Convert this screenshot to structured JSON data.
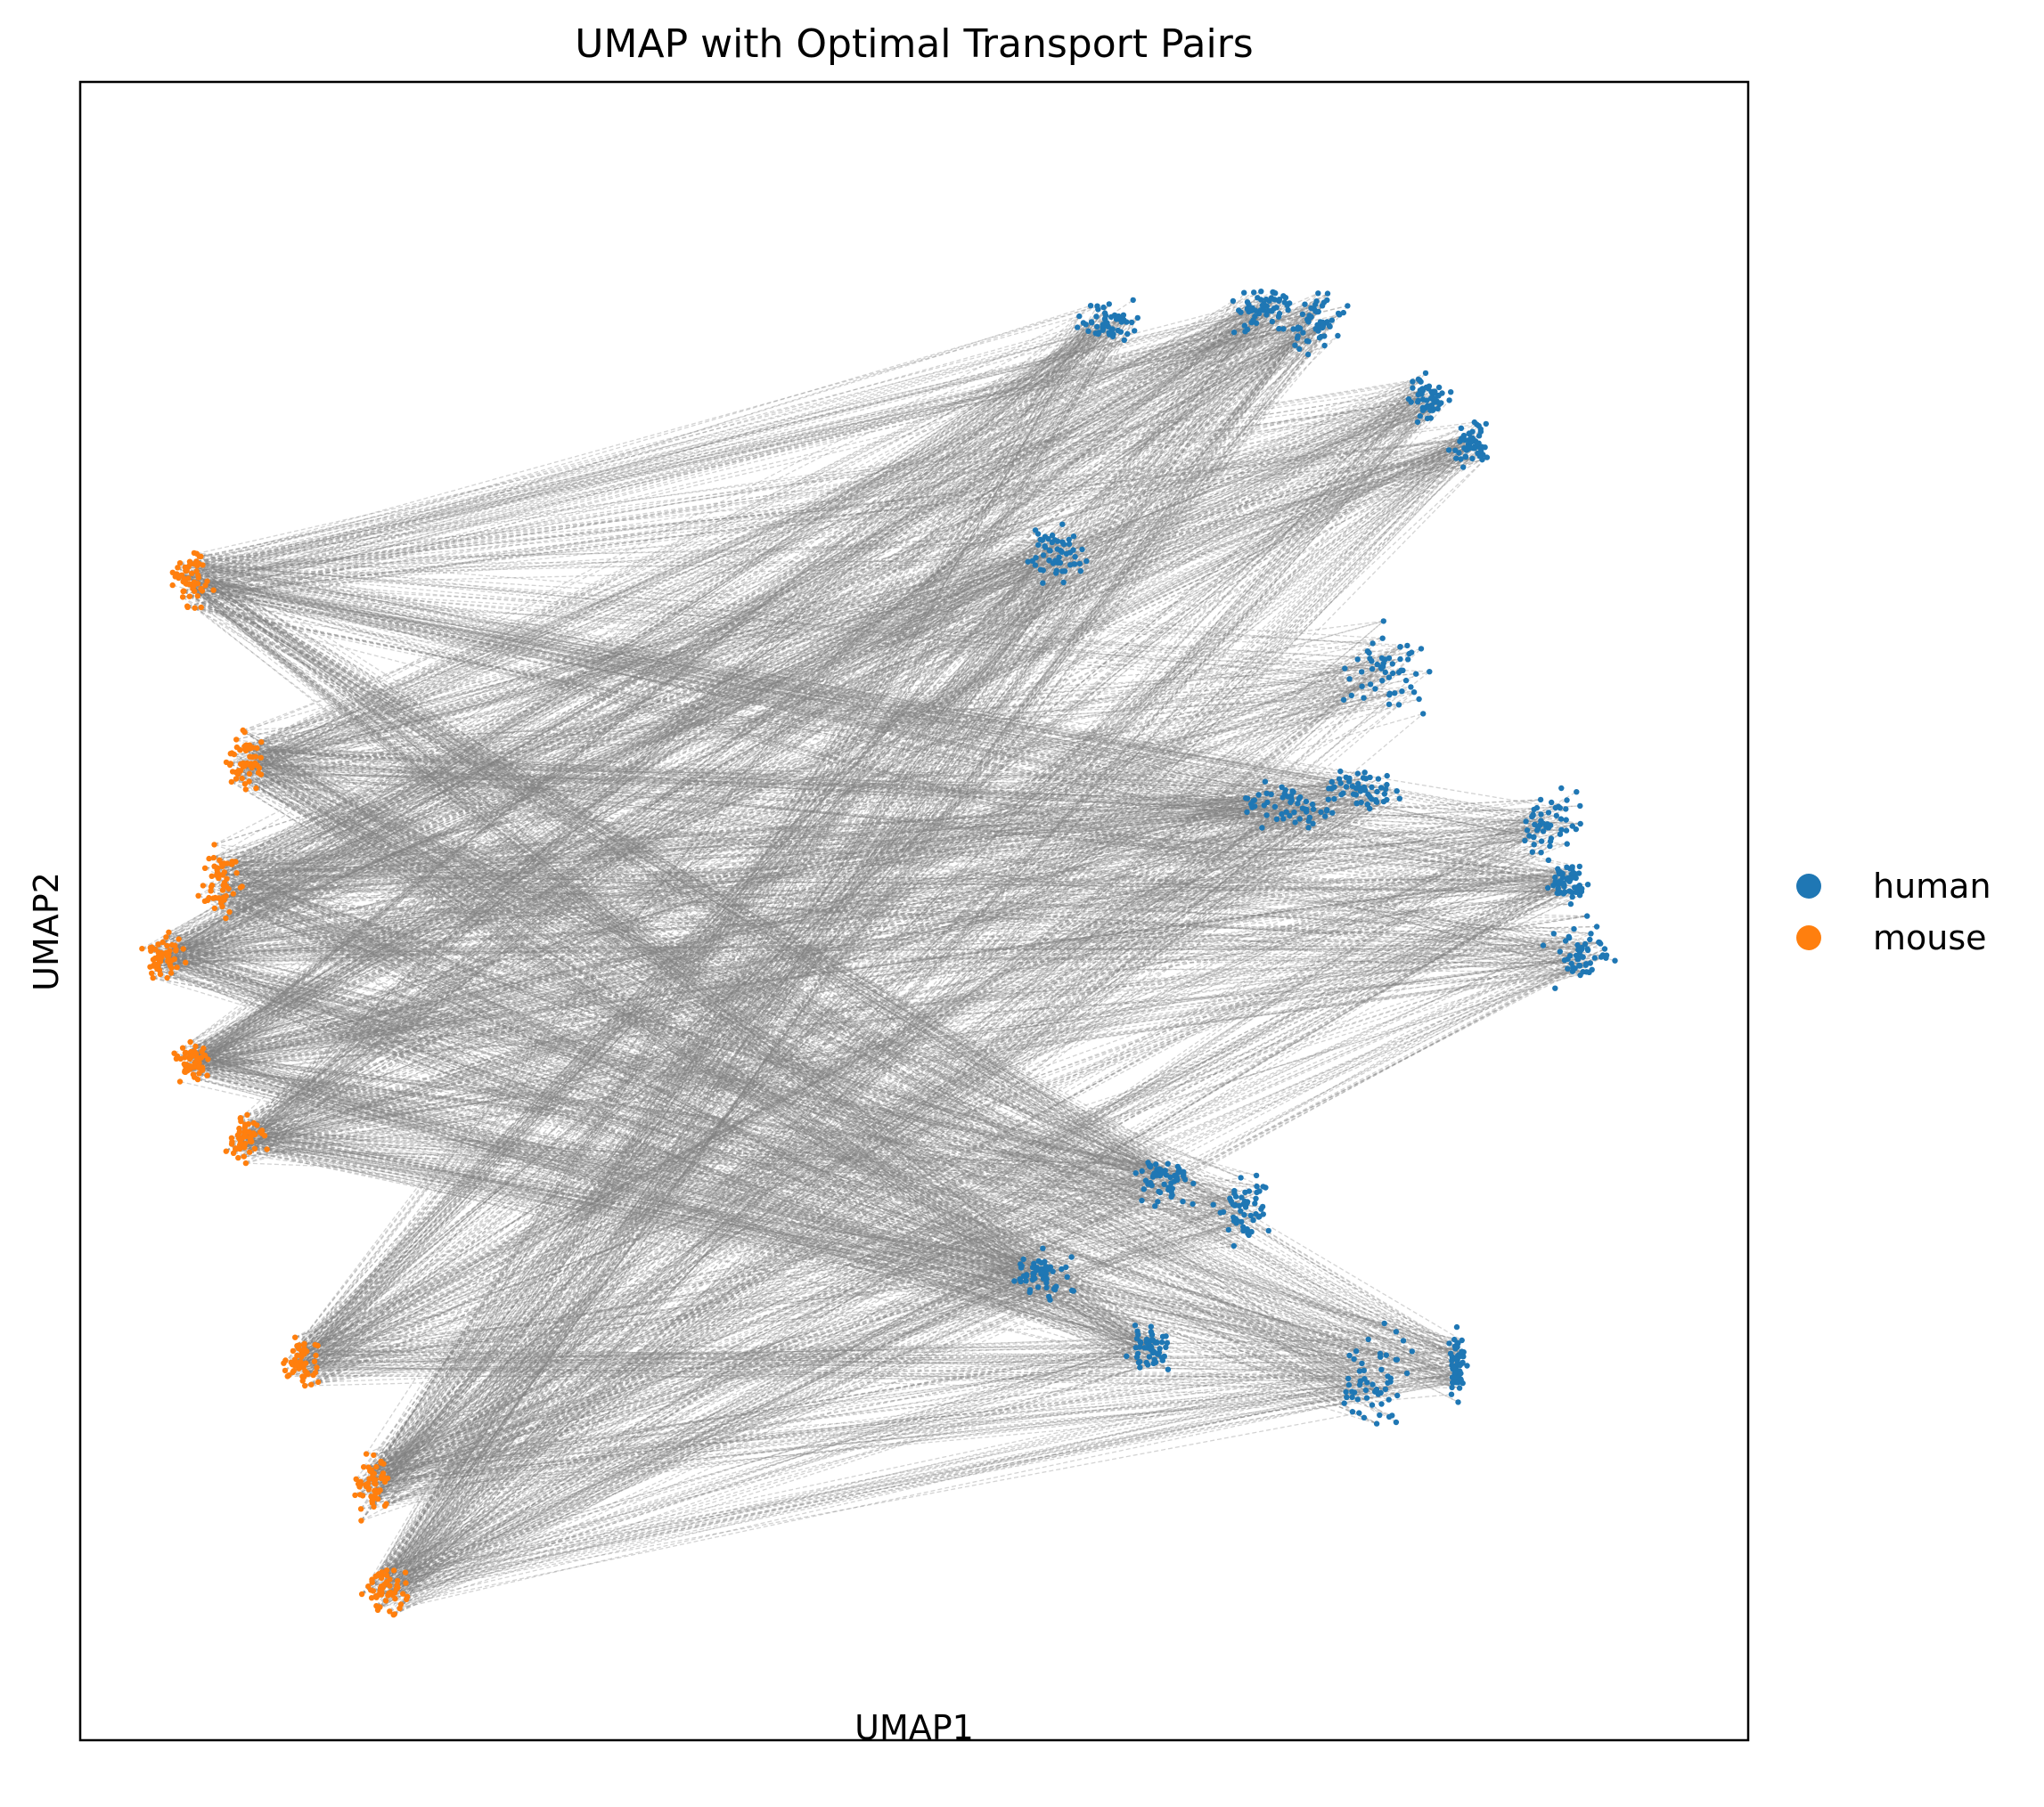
{
  "chart_data": {
    "type": "scatter",
    "title": "UMAP with Optimal Transport Pairs",
    "xlabel": "UMAP1",
    "ylabel": "UMAP2",
    "ticks": "none",
    "grid": false,
    "legend_position": "right-outside",
    "pair_line_color": "#808080",
    "series": [
      {
        "name": "human",
        "color": "#1f77b4",
        "clusters": [
          {
            "center": [
              44,
              84
            ],
            "spread": [
              3,
              2
            ]
          },
          {
            "center": [
              55,
              85
            ],
            "spread": [
              3,
              2
            ]
          },
          {
            "center": [
              59,
              84
            ],
            "spread": [
              3,
              3
            ]
          },
          {
            "center": [
              67,
              79
            ],
            "spread": [
              2,
              2
            ]
          },
          {
            "center": [
              70,
              76
            ],
            "spread": [
              2,
              2
            ]
          },
          {
            "center": [
              40,
              69
            ],
            "spread": [
              3,
              3
            ]
          },
          {
            "center": [
              64,
              61
            ],
            "spread": [
              4,
              4
            ]
          },
          {
            "center": [
              57,
              52
            ],
            "spread": [
              4,
              2
            ]
          },
          {
            "center": [
              62,
              53
            ],
            "spread": [
              4,
              2
            ]
          },
          {
            "center": [
              76,
              51
            ],
            "spread": [
              3,
              3
            ]
          },
          {
            "center": [
              77,
              47
            ],
            "spread": [
              2,
              2
            ]
          },
          {
            "center": [
              78,
              42
            ],
            "spread": [
              3,
              3
            ]
          },
          {
            "center": [
              48,
              27
            ],
            "spread": [
              3,
              2
            ]
          },
          {
            "center": [
              54,
              25
            ],
            "spread": [
              3,
              3
            ]
          },
          {
            "center": [
              39,
              21
            ],
            "spread": [
              3,
              2
            ]
          },
          {
            "center": [
              63,
              14
            ],
            "spread": [
              4,
              5
            ]
          },
          {
            "center": [
              69,
              15
            ],
            "spread": [
              1,
              3
            ]
          },
          {
            "center": [
              47,
              16
            ],
            "spread": [
              2,
              2
            ]
          }
        ]
      },
      {
        "name": "mouse",
        "color": "#ff7f0e",
        "clusters": [
          {
            "center": [
              -22,
              67
            ],
            "spread": [
              2,
              3
            ]
          },
          {
            "center": [
              -18,
              55
            ],
            "spread": [
              2,
              3
            ]
          },
          {
            "center": [
              -20,
              47
            ],
            "spread": [
              2,
              3
            ]
          },
          {
            "center": [
              -24,
              42
            ],
            "spread": [
              2,
              2
            ]
          },
          {
            "center": [
              -22,
              35
            ],
            "spread": [
              2,
              2
            ]
          },
          {
            "center": [
              -18,
              30
            ],
            "spread": [
              2,
              2
            ]
          },
          {
            "center": [
              -14,
              15
            ],
            "spread": [
              2,
              2
            ]
          },
          {
            "center": [
              -9,
              7
            ],
            "spread": [
              2,
              3
            ]
          },
          {
            "center": [
              -8,
              0
            ],
            "spread": [
              2,
              2
            ]
          }
        ]
      }
    ],
    "xlim": [
      -30,
      90
    ],
    "ylim": [
      -10,
      100
    ]
  },
  "legend": {
    "human_label": "human",
    "mouse_label": "mouse"
  }
}
